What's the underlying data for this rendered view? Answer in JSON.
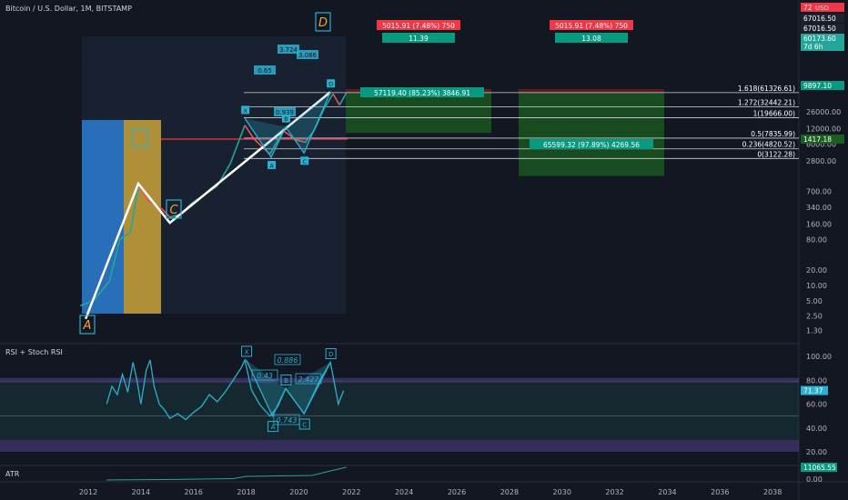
{
  "header": {
    "title": "Bitcoin / U.S. Dollar, 1M, BITSTAMP",
    "currency": "USD"
  },
  "price_badges": [
    {
      "text": "72",
      "bg": "#f23645",
      "fg": "#ffffff"
    },
    {
      "text": "67016.50",
      "bg": "#1e222d",
      "fg": "#ffffff"
    },
    {
      "text": "67016.50",
      "bg": "#1e222d",
      "fg": "#ffffff"
    },
    {
      "text": "60173.60",
      "bg": "#26a69a",
      "fg": "#ffffff"
    },
    {
      "text": "7d 6h",
      "bg": "#26a69a",
      "fg": "#ffffff"
    },
    {
      "text": "9897.10",
      "bg": "#089981",
      "fg": "#ffffff"
    },
    {
      "text": "1417.18",
      "bg": "#1b5e20",
      "fg": "#ffffff"
    }
  ],
  "chart_data": [
    {
      "type": "line",
      "title": "Bitcoin / U.S. Dollar, 1M, BITSTAMP",
      "y_scale": "log",
      "x_ticks": [
        "2012",
        "2014",
        "2016",
        "2018",
        "2020",
        "2022",
        "2024",
        "2026",
        "2028",
        "2030",
        "2032",
        "2034",
        "2036",
        "2038"
      ],
      "y_ticks": [
        "26000.00",
        "12000.00",
        "6000.00",
        "2800.00",
        "700.00",
        "340.00",
        "160.00",
        "80.00",
        "20.00",
        "10.00",
        "5.00",
        "2.50",
        "1.30"
      ],
      "series": [
        {
          "values_sample": [
            [
              2011.7,
              4
            ],
            [
              2012.2,
              5
            ],
            [
              2012.8,
              12
            ],
            [
              2013.2,
              80
            ],
            [
              2013.6,
              110
            ],
            [
              2013.9,
              900
            ],
            [
              2014.3,
              450
            ],
            [
              2014.8,
              320
            ],
            [
              2015.1,
              220
            ],
            [
              2015.5,
              250
            ],
            [
              2015.9,
              400
            ],
            [
              2016.4,
              600
            ],
            [
              2016.9,
              900
            ],
            [
              2017.4,
              2500
            ],
            [
              2017.95,
              14000
            ],
            [
              2018.3,
              7500
            ],
            [
              2018.9,
              3800
            ],
            [
              2019.4,
              11000
            ],
            [
              2019.9,
              7200
            ],
            [
              2020.25,
              6500
            ],
            [
              2020.6,
              11500
            ],
            [
              2020.95,
              29000
            ],
            [
              2021.3,
              58000
            ],
            [
              2021.55,
              35000
            ],
            [
              2021.8,
              60000
            ]
          ]
        }
      ],
      "harmonic_large": [
        {
          "label": "A",
          "x": 2011.9,
          "y": 2.2
        },
        {
          "label": "B",
          "x": 2013.9,
          "y": 1000
        },
        {
          "label": "C",
          "x": 2015.1,
          "y": 170
        },
        {
          "label": "D",
          "x": 2021.2,
          "y": 63000
        }
      ],
      "harmonic_small": {
        "points": [
          {
            "label": "X",
            "x": 2017.95,
            "y": 19000
          },
          {
            "label": "A",
            "x": 2018.95,
            "y": 3300
          },
          {
            "label": "B",
            "x": 2019.5,
            "y": 13000
          },
          {
            "label": "C",
            "x": 2020.2,
            "y": 4000
          },
          {
            "label": "D",
            "x": 2021.2,
            "y": 63000
          }
        ],
        "ratios": [
          "0.65",
          "3.724",
          "0.939",
          "3.086"
        ]
      },
      "fib_levels": [
        {
          "label": "1.618(61326.61)",
          "y": 61326.61
        },
        {
          "label": "1.272(32442.21)",
          "y": 32442.21
        },
        {
          "label": "1(19666.00)",
          "y": 19666.0
        },
        {
          "label": "0.5(7835.99)",
          "y": 7835.99
        },
        {
          "label": "0.236(4820.52)",
          "y": 4820.52
        },
        {
          "label": "0(3122.28)",
          "y": 3122.28
        }
      ],
      "positions": [
        {
          "stop_label": "5015.91 (7.48%) 750",
          "ratio": "11.39",
          "target_label": "57119.40 (85.23%) 3846.91",
          "entry": 61326.61,
          "target": 9897.1
        },
        {
          "stop_label": "5015.91 (7.48%) 750",
          "ratio": "13.08",
          "target_label": "65599.32 (97.89%) 4269.56",
          "entry": 61326.61,
          "target": 1417.18
        }
      ],
      "red_line_level": 1417.18
    },
    {
      "type": "line",
      "title": "RSI + Stoch RSI",
      "y_ticks": [
        "100.00",
        "80.00",
        "60.00",
        "40.00",
        "20.00"
      ],
      "current_value": "71.37",
      "harmonic": {
        "points": [
          {
            "label": "X",
            "x": 2018.0,
            "y": 97
          },
          {
            "label": "A",
            "x": 2019.0,
            "y": 50
          },
          {
            "label": "B",
            "x": 2019.5,
            "y": 73
          },
          {
            "label": "C",
            "x": 2020.2,
            "y": 52
          },
          {
            "label": "D",
            "x": 2021.2,
            "y": 95
          }
        ],
        "ratios": [
          "0.886",
          "0.43",
          "2.427",
          "0.743"
        ]
      }
    },
    {
      "type": "area",
      "title": "ATR",
      "y_ticks": [
        "0.00"
      ],
      "current_value": "11065.55"
    }
  ]
}
